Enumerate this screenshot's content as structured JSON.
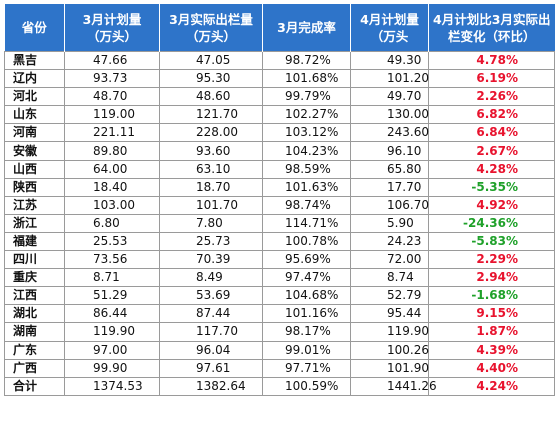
{
  "table": {
    "headers": [
      "省份",
      "3月计划量\n（万头）",
      "3月实际出栏量\n（万头）",
      "3月完成率",
      "4月计划量\n（万头",
      "4月计划比3月实际出\n栏变化（环比）"
    ],
    "rows": [
      {
        "province": "黑吉",
        "mar_plan": "47.66",
        "mar_actual": "47.05",
        "mar_rate": "98.72%",
        "apr_plan": "49.30",
        "change": "4.78%",
        "trend": "up"
      },
      {
        "province": "辽内",
        "mar_plan": "93.73",
        "mar_actual": "95.30",
        "mar_rate": "101.68%",
        "apr_plan": "101.20",
        "change": "6.19%",
        "trend": "up"
      },
      {
        "province": "河北",
        "mar_plan": "48.70",
        "mar_actual": "48.60",
        "mar_rate": "99.79%",
        "apr_plan": "49.70",
        "change": "2.26%",
        "trend": "up"
      },
      {
        "province": "山东",
        "mar_plan": "119.00",
        "mar_actual": "121.70",
        "mar_rate": "102.27%",
        "apr_plan": "130.00",
        "change": "6.82%",
        "trend": "up"
      },
      {
        "province": "河南",
        "mar_plan": "221.11",
        "mar_actual": "228.00",
        "mar_rate": "103.12%",
        "apr_plan": "243.60",
        "change": "6.84%",
        "trend": "up"
      },
      {
        "province": "安徽",
        "mar_plan": "89.80",
        "mar_actual": "93.60",
        "mar_rate": "104.23%",
        "apr_plan": "96.10",
        "change": "2.67%",
        "trend": "up"
      },
      {
        "province": "山西",
        "mar_plan": "64.00",
        "mar_actual": "63.10",
        "mar_rate": "98.59%",
        "apr_plan": "65.80",
        "change": "4.28%",
        "trend": "up"
      },
      {
        "province": "陕西",
        "mar_plan": "18.40",
        "mar_actual": "18.70",
        "mar_rate": "101.63%",
        "apr_plan": "17.70",
        "change": "-5.35%",
        "trend": "down"
      },
      {
        "province": "江苏",
        "mar_plan": "103.00",
        "mar_actual": "101.70",
        "mar_rate": "98.74%",
        "apr_plan": "106.70",
        "change": "4.92%",
        "trend": "up"
      },
      {
        "province": "浙江",
        "mar_plan": "6.80",
        "mar_actual": "7.80",
        "mar_rate": "114.71%",
        "apr_plan": "5.90",
        "change": "-24.36%",
        "trend": "down"
      },
      {
        "province": "福建",
        "mar_plan": "25.53",
        "mar_actual": "25.73",
        "mar_rate": "100.78%",
        "apr_plan": "24.23",
        "change": "-5.83%",
        "trend": "down"
      },
      {
        "province": "四川",
        "mar_plan": "73.56",
        "mar_actual": "70.39",
        "mar_rate": "95.69%",
        "apr_plan": "72.00",
        "change": "2.29%",
        "trend": "up"
      },
      {
        "province": "重庆",
        "mar_plan": "8.71",
        "mar_actual": "8.49",
        "mar_rate": "97.47%",
        "apr_plan": "8.74",
        "change": "2.94%",
        "trend": "up"
      },
      {
        "province": "江西",
        "mar_plan": "51.29",
        "mar_actual": "53.69",
        "mar_rate": "104.68%",
        "apr_plan": "52.79",
        "change": "-1.68%",
        "trend": "down"
      },
      {
        "province": "湖北",
        "mar_plan": "86.44",
        "mar_actual": "87.44",
        "mar_rate": "101.16%",
        "apr_plan": "95.44",
        "change": "9.15%",
        "trend": "up"
      },
      {
        "province": "湖南",
        "mar_plan": "119.90",
        "mar_actual": "117.70",
        "mar_rate": "98.17%",
        "apr_plan": "119.90",
        "change": "1.87%",
        "trend": "up"
      },
      {
        "province": "广东",
        "mar_plan": "97.00",
        "mar_actual": "96.04",
        "mar_rate": "99.01%",
        "apr_plan": "100.26",
        "change": "4.39%",
        "trend": "up"
      },
      {
        "province": "广西",
        "mar_plan": "99.90",
        "mar_actual": "97.61",
        "mar_rate": "97.71%",
        "apr_plan": "101.90",
        "change": "4.40%",
        "trend": "up"
      },
      {
        "province": "合计",
        "mar_plan": "1374.53",
        "mar_actual": "1382.64",
        "mar_rate": "100.59%",
        "apr_plan": "1441.26",
        "change": "4.24%",
        "trend": "up"
      }
    ]
  },
  "colors": {
    "header_bg": "#2e74c9",
    "header_text": "#ffffff",
    "positive": "#e8132e",
    "negative": "#1fa12a",
    "grid": "#9a9a9a"
  }
}
